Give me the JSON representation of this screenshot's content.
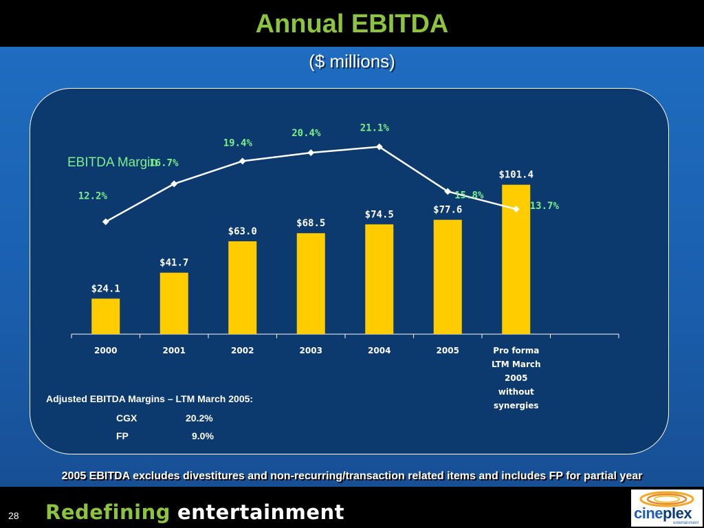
{
  "title": "Annual EBITDA",
  "subtitle": "($ millions)",
  "chart_data": {
    "type": "bar",
    "categories": [
      "2000",
      "2001",
      "2002",
      "2003",
      "2004",
      "2005",
      "Pro forma LTM March 2005 without synergies"
    ],
    "category_lines": [
      [
        "2000"
      ],
      [
        "2001"
      ],
      [
        "2002"
      ],
      [
        "2003"
      ],
      [
        "2004"
      ],
      [
        "2005"
      ],
      [
        "Pro forma",
        "LTM March",
        "2005",
        "without",
        "synergies"
      ]
    ],
    "ylim": [
      0,
      140
    ],
    "series": [
      {
        "values": [
          24.1,
          41.7,
          63.0,
          68.5,
          74.5,
          77.6,
          101.4
        ],
        "labels": [
          "$24.1",
          "$41.7",
          "$63.0",
          "$68.5",
          "$74.5",
          "$77.6",
          "$101.4"
        ],
        "color": "#ffcc00"
      },
      {
        "name": "EBITDA Margin",
        "type": "line",
        "values": [
          12.2,
          16.7,
          19.4,
          20.4,
          21.1,
          15.8,
          13.7
        ],
        "labels": [
          "12.2%",
          "16.7%",
          "19.4%",
          "20.4%",
          "21.1%",
          "15.8%",
          "13.7%"
        ],
        "color": "#ffffff",
        "ylim": [
          0,
          28
        ]
      }
    ],
    "line_label_color": "#7cf08a",
    "bar_label_color": "#ffffff"
  },
  "notes": {
    "heading": "Adjusted EBITDA Margins – LTM March 2005:",
    "rows": [
      {
        "name": "CGX",
        "value": "20.2%"
      },
      {
        "name": "FP",
        "value": "9.0%"
      }
    ]
  },
  "footnote": "2005 EBITDA excludes divestitures and non-recurring/transaction related items and includes FP for partial year",
  "footer": {
    "page_number": "28",
    "tagline_1": "Redefining",
    "tagline_2": "entertainment",
    "logo_word_1": "cine",
    "logo_word_2": "plex",
    "logo_sub": "entertainment"
  },
  "colors": {
    "title": "#8cc43f",
    "background": "#1a5fae",
    "panel": "#0d3a6e",
    "bar": "#ffcc00"
  }
}
